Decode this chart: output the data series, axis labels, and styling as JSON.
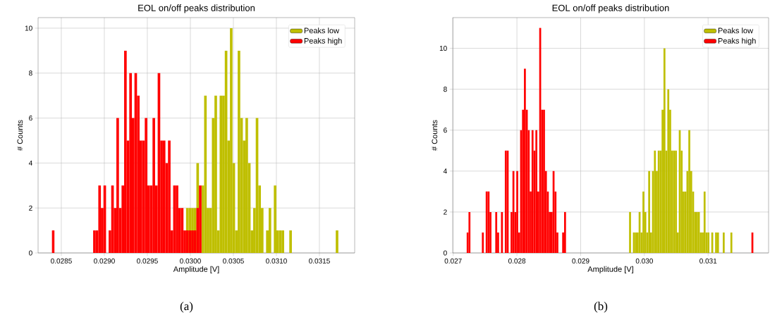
{
  "chart_data": [
    {
      "type": "histogram",
      "title": "EOL on/off peaks distribution",
      "xlabel": "Amplitude [V]",
      "ylabel": "# Counts",
      "xlim": [
        0.02823,
        0.03191
      ],
      "ylim": [
        0,
        10.47
      ],
      "xticks": [
        0.0285,
        {
          "value": 0.029,
          "label": "0.0290"
        },
        0.0295,
        {
          "value": 0.03,
          "label": "0.0300"
        },
        0.0305,
        {
          "value": 0.031,
          "label": "0.0310"
        },
        0.0315
      ],
      "yticks": [
        0,
        2,
        4,
        6,
        8,
        10
      ],
      "grid": true,
      "legend": "top right",
      "annotations": [
        "(a)"
      ],
      "bins": [
        0.02839,
        0.02842,
        0.02887,
        0.0289,
        0.02893,
        0.02896,
        0.02899,
        0.02902,
        0.02905,
        0.02908,
        0.02911,
        0.02914,
        0.02917,
        0.0292,
        0.02923,
        0.02926,
        0.02929,
        0.02932,
        0.02935,
        0.02938,
        0.02941,
        0.02944,
        0.02947,
        0.0295,
        0.02953,
        0.02956,
        0.02959,
        0.02962,
        0.02965,
        0.02968,
        0.02971,
        0.02974,
        0.02977,
        0.0298,
        0.02983,
        0.02986,
        0.02989,
        0.02992,
        0.02995,
        0.02998,
        0.03001,
        0.03004,
        0.03007,
        0.0301,
        0.03013,
        0.03016,
        0.03019,
        0.03022,
        0.03025,
        0.03028,
        0.03031,
        0.03034,
        0.03037,
        0.0304,
        0.03043,
        0.03046,
        0.03049,
        0.03052,
        0.03055,
        0.03058,
        0.03061,
        0.03064,
        0.03067,
        0.0307,
        0.03073,
        0.03076,
        0.03079,
        0.03082,
        0.03085,
        0.03088,
        0.03091,
        0.03094,
        0.03097,
        0.031,
        0.03103,
        0.03106,
        0.03109,
        0.03115,
        0.03118,
        0.03169,
        0.03172
      ],
      "series": [
        {
          "name": "Peaks low",
          "color": "#bfbf00",
          "values": [
            0,
            0,
            0,
            0,
            0,
            0,
            0,
            0,
            0,
            0,
            0,
            0,
            0,
            0,
            0,
            0,
            0,
            0,
            0,
            0,
            0,
            0,
            0,
            0,
            0,
            0,
            0,
            0,
            0,
            0,
            0,
            0,
            0,
            0,
            0,
            0,
            0,
            0,
            2,
            2,
            2,
            2,
            4,
            null,
            3,
            7,
            2,
            2,
            6,
            7,
            1,
            7,
            7,
            9,
            5,
            10,
            4,
            1,
            9,
            6,
            5,
            6,
            4,
            1,
            2,
            6,
            3,
            2,
            0,
            1,
            2,
            0,
            3,
            1,
            1,
            1,
            0,
            1,
            0,
            1
          ]
        },
        {
          "name": "Peaks high",
          "color": "#ff0000",
          "values": [
            1,
            0,
            1,
            1,
            3,
            2,
            3,
            0,
            1,
            3,
            2,
            6,
            2,
            3,
            9,
            5,
            8,
            6,
            8,
            7,
            5,
            5,
            6,
            3,
            3,
            6,
            3,
            8,
            5,
            5,
            4,
            5,
            1,
            3,
            3,
            2,
            2,
            1,
            1,
            1,
            1,
            1,
            2,
            3,
            0,
            0,
            0,
            0,
            0,
            0,
            0,
            0,
            0,
            0,
            0,
            0,
            0,
            0,
            0,
            0,
            0,
            0,
            0,
            0,
            0,
            0,
            0,
            0,
            0,
            0,
            0,
            0,
            0,
            0,
            0,
            0,
            0,
            0,
            0,
            0
          ]
        }
      ]
    },
    {
      "type": "histogram",
      "title": "EOL on/off peaks distribution",
      "xlabel": "Amplitude [V]",
      "ylabel": "# Counts",
      "xlim": [
        0.026992,
        0.031949
      ],
      "ylim": [
        0,
        11.5
      ],
      "xticks": [
        0.027,
        0.028,
        0.029,
        {
          "value": 0.03,
          "label": "0.030"
        },
        0.031
      ],
      "yticks": [
        0,
        2,
        4,
        6,
        8,
        10
      ],
      "grid": true,
      "legend": "top right",
      "annotations": [
        "(b)"
      ],
      "bins": [
        0.02721,
        0.02724,
        0.02727,
        0.02745,
        0.02748,
        0.02751,
        0.02754,
        0.02757,
        0.0276,
        0.02766,
        0.02769,
        0.02772,
        0.02775,
        0.02778,
        0.02781,
        0.02784,
        0.02787,
        0.0279,
        0.02793,
        0.02796,
        0.02799,
        0.02802,
        0.02805,
        0.02808,
        0.02811,
        0.02814,
        0.02817,
        0.0282,
        0.02823,
        0.02826,
        0.02829,
        0.02832,
        0.02835,
        0.02838,
        0.02841,
        0.02844,
        0.02847,
        0.0285,
        0.02853,
        0.02856,
        0.02859,
        0.02862,
        0.02865,
        0.02871,
        0.02874,
        0.02877,
        0.02976,
        0.02979,
        0.02982,
        0.02985,
        0.02988,
        0.02991,
        0.02994,
        0.02997,
        0.03,
        0.03003,
        0.03006,
        0.03009,
        0.03012,
        0.03015,
        0.03018,
        0.03021,
        0.03024,
        0.03027,
        0.0303,
        0.03033,
        0.03036,
        0.03039,
        0.03042,
        0.03045,
        0.03048,
        0.03051,
        0.03054,
        0.03057,
        0.0306,
        0.03063,
        0.03066,
        0.03069,
        0.03072,
        0.03075,
        0.03078,
        0.03081,
        0.03084,
        0.03087,
        0.0309,
        0.03093,
        0.03096,
        0.03099,
        0.03102,
        0.03105,
        0.03108,
        0.03111,
        0.03114,
        0.03117,
        0.03123,
        0.03126,
        0.03135,
        0.03138,
        0.03168,
        0.03171
      ],
      "series": [
        {
          "name": "Peaks low",
          "color": "#bfbf00",
          "values": [
            0,
            0,
            0,
            0,
            0,
            0,
            0,
            0,
            0,
            0,
            0,
            0,
            0,
            0,
            0,
            0,
            0,
            0,
            0,
            0,
            0,
            0,
            0,
            0,
            0,
            0,
            0,
            0,
            0,
            0,
            0,
            0,
            0,
            0,
            0,
            0,
            0,
            0,
            0,
            0,
            0,
            0,
            0,
            0,
            0,
            0,
            2,
            0,
            1,
            1,
            1,
            2,
            1,
            3,
            2,
            1,
            4,
            1,
            4,
            5,
            4,
            5,
            5,
            7,
            10,
            5,
            8,
            7,
            5,
            5,
            5,
            1,
            6,
            5,
            3,
            3,
            4,
            6,
            4,
            3,
            2,
            2,
            2,
            1,
            1,
            3,
            1,
            1,
            0,
            1,
            0,
            1,
            1,
            0,
            1,
            0,
            1,
            0,
            0
          ]
        },
        {
          "name": "Peaks high",
          "color": "#ff0000",
          "values": [
            1,
            2,
            0,
            1,
            0,
            3,
            3,
            2,
            0,
            2,
            1,
            0,
            2,
            0,
            5,
            5,
            0,
            2,
            4,
            2,
            4,
            1,
            6,
            7,
            9,
            7,
            6,
            3,
            6,
            5,
            6,
            3,
            11,
            7,
            7,
            4,
            3,
            2,
            2,
            4,
            3,
            1,
            0,
            1,
            2,
            0,
            0,
            0,
            0,
            0,
            0,
            0,
            0,
            0,
            0,
            0,
            0,
            0,
            0,
            0,
            0,
            0,
            0,
            0,
            0,
            0,
            0,
            0,
            0,
            0,
            0,
            0,
            0,
            0,
            0,
            0,
            0,
            0,
            0,
            0,
            0,
            0,
            0,
            0,
            0,
            0,
            0,
            0,
            0,
            0,
            0,
            0,
            0,
            0,
            0,
            0,
            0,
            0,
            1
          ]
        }
      ]
    }
  ]
}
